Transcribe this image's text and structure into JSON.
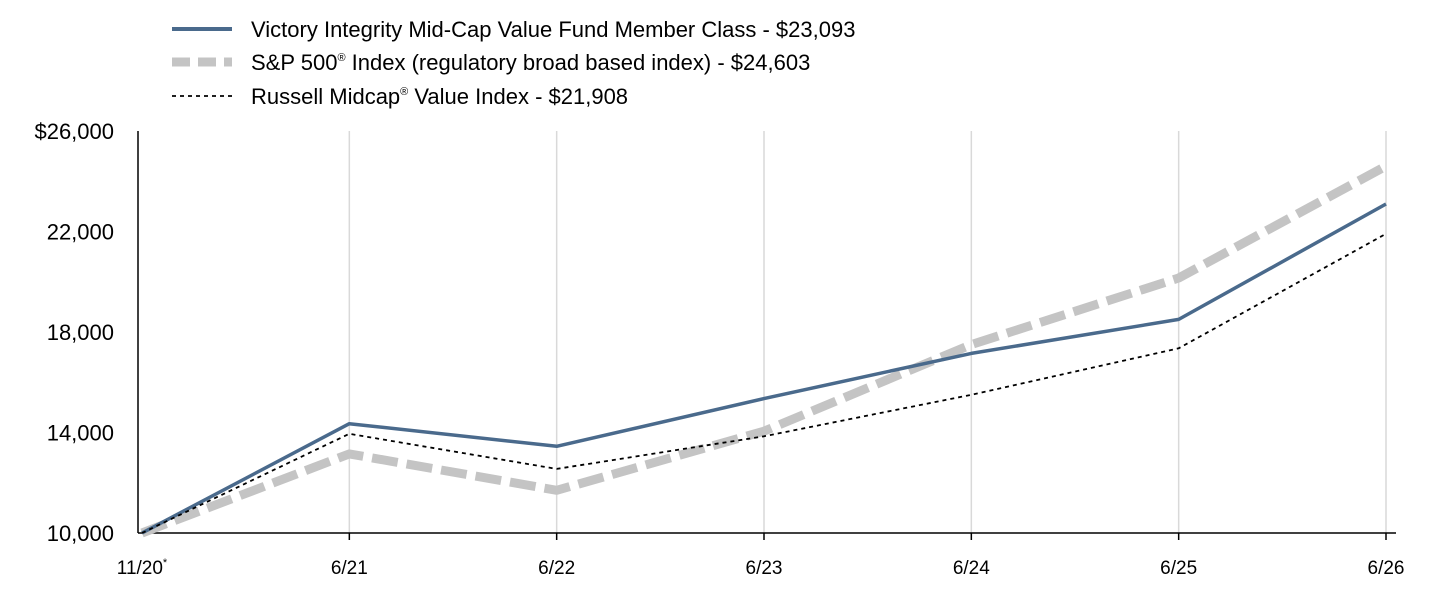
{
  "chart_data": {
    "type": "line",
    "categories": [
      "11/20",
      "6/21",
      "6/22",
      "6/23",
      "6/24",
      "6/25",
      "6/26"
    ],
    "first_category_note": "*",
    "y_ticks": [
      10000,
      14000,
      18000,
      22000,
      26000
    ],
    "y_tick_labels": [
      "10,000",
      "14,000",
      "18,000",
      "22,000",
      "$26,000"
    ],
    "ylim": [
      10000,
      26000
    ],
    "grid": "vertical",
    "legend_position": "top-left",
    "series": [
      {
        "name": "Victory Integrity Mid-Cap Value Fund Member Class - $23,093",
        "values": [
          10000,
          14350,
          13450,
          15350,
          17150,
          18500,
          23093
        ],
        "color": "#4a6a8c",
        "style": "solid"
      },
      {
        "name_main": "S&P 500",
        "name_mark": "®",
        "name_rest": " Index (regulatory broad based index) - $24,603",
        "values": [
          10000,
          13150,
          11700,
          14050,
          17500,
          20150,
          24603
        ],
        "color": "#c4c4c4",
        "style": "thick-dashed"
      },
      {
        "name_main": "Russell Midcap",
        "name_mark": "®",
        "name_rest": " Value Index - $21,908",
        "values": [
          10000,
          13950,
          12550,
          13850,
          15500,
          17350,
          21908
        ],
        "color": "#000000",
        "style": "dotted"
      }
    ]
  }
}
